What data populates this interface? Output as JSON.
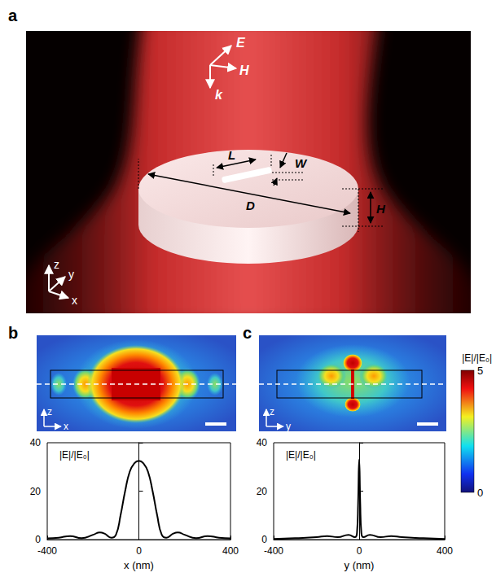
{
  "panel_a": {
    "letter": "a",
    "field_arrows": [
      "E",
      "H",
      "k"
    ],
    "dimensions": [
      "L",
      "W",
      "D",
      "H"
    ],
    "axes": [
      "z",
      "y",
      "x"
    ]
  },
  "field_maps": [
    {
      "letter": "b",
      "axes": [
        "z",
        "x"
      ]
    },
    {
      "letter": "c",
      "axes": [
        "z",
        "y"
      ]
    }
  ],
  "colorbar": {
    "title": "|E|/|E₀|",
    "range": [
      0,
      5
    ],
    "ticks": [
      0,
      5
    ]
  },
  "chart_data": [
    {
      "type": "line",
      "annotation": "|E|/|E₀|",
      "x_label": "x (nm)",
      "x": [
        -400,
        -350,
        -300,
        -250,
        -200,
        -170,
        -150,
        -120,
        -100,
        -80,
        -60,
        -40,
        -20,
        0,
        20,
        40,
        60,
        80,
        100,
        120,
        150,
        170,
        200,
        250,
        300,
        350,
        400
      ],
      "values": [
        0.5,
        0.8,
        1.5,
        0.6,
        2,
        3,
        2.5,
        0.8,
        2,
        10,
        20,
        28,
        31.5,
        32.5,
        31.5,
        28,
        20,
        10,
        2,
        0.8,
        2.5,
        3,
        2,
        0.6,
        1.5,
        0.8,
        0.5
      ],
      "color": "#000000",
      "xlim": [
        -400,
        400
      ],
      "xticks": [
        -400,
        0,
        400
      ],
      "ylim": [
        0,
        40
      ],
      "yticks": [
        0,
        20,
        40
      ],
      "grid": false
    },
    {
      "type": "line",
      "annotation": "|E|/|E₀|",
      "x_label": "y (nm)",
      "x": [
        -400,
        -300,
        -200,
        -150,
        -100,
        -50,
        -20,
        -10,
        -5,
        0,
        5,
        10,
        20,
        50,
        100,
        150,
        200,
        300,
        400
      ],
      "values": [
        0.3,
        0.6,
        1,
        1.5,
        1,
        2,
        1,
        3,
        15,
        33,
        15,
        3,
        1,
        2,
        1,
        1.5,
        1,
        0.6,
        0.3
      ],
      "color": "#000000",
      "xlim": [
        -400,
        400
      ],
      "xticks": [
        -400,
        0,
        400
      ],
      "ylim": [
        0,
        40
      ],
      "yticks": [
        0,
        20,
        40
      ],
      "grid": false
    }
  ]
}
